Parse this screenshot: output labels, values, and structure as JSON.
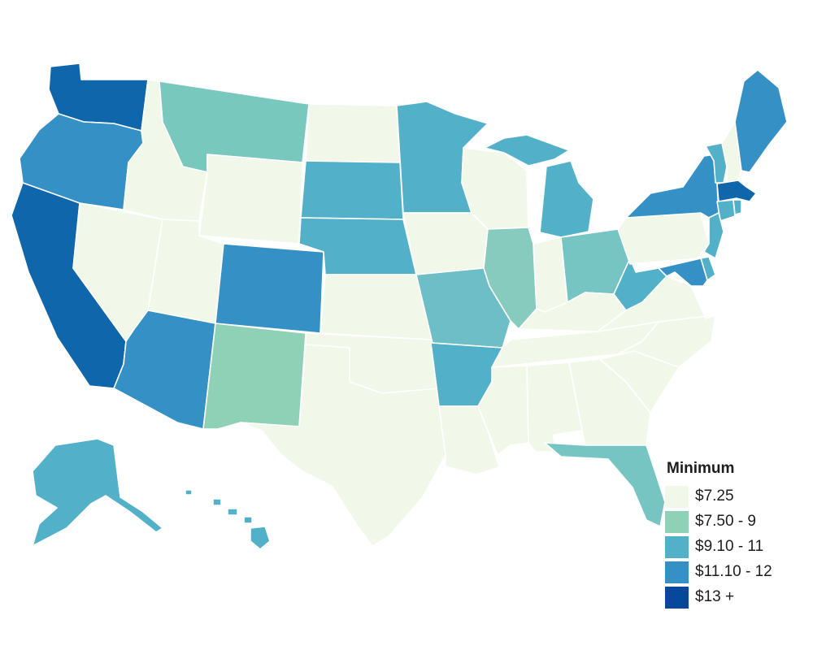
{
  "map": {
    "title": "",
    "colors": {
      "t725": "#f1f8e9",
      "t750_9": "#8fd1b6",
      "t910_11": "#52b1c8",
      "t1110_12": "#3590c5",
      "t13": "#0f66ab",
      "t13_legend": "#08489c",
      "tMO": "#6dbec7",
      "tIL": "#86cbbe",
      "tOH": "#76c5c3",
      "tMT": "#78c8be",
      "border": "#ffffff"
    },
    "states": [
      {
        "name": "WA",
        "tier": "t13"
      },
      {
        "name": "OR",
        "tier": "t1110_12"
      },
      {
        "name": "CA",
        "tier": "t13"
      },
      {
        "name": "NV",
        "tier": "t725"
      },
      {
        "name": "ID",
        "tier": "t725"
      },
      {
        "name": "MT",
        "tier": "tMT"
      },
      {
        "name": "WY",
        "tier": "t725"
      },
      {
        "name": "UT",
        "tier": "t725"
      },
      {
        "name": "AZ",
        "tier": "t1110_12"
      },
      {
        "name": "CO",
        "tier": "t1110_12"
      },
      {
        "name": "NM",
        "tier": "t750_9"
      },
      {
        "name": "ND",
        "tier": "t725"
      },
      {
        "name": "SD",
        "tier": "t910_11"
      },
      {
        "name": "NE",
        "tier": "t910_11"
      },
      {
        "name": "KS",
        "tier": "t725"
      },
      {
        "name": "OK",
        "tier": "t725"
      },
      {
        "name": "TX",
        "tier": "t725"
      },
      {
        "name": "MN",
        "tier": "t910_11"
      },
      {
        "name": "IA",
        "tier": "t725"
      },
      {
        "name": "MO",
        "tier": "tMO"
      },
      {
        "name": "AR",
        "tier": "t910_11"
      },
      {
        "name": "LA",
        "tier": "t725"
      },
      {
        "name": "WI",
        "tier": "t725"
      },
      {
        "name": "IL",
        "tier": "tIL"
      },
      {
        "name": "MI",
        "tier": "t910_11"
      },
      {
        "name": "IN",
        "tier": "t725"
      },
      {
        "name": "OH",
        "tier": "tOH"
      },
      {
        "name": "KY",
        "tier": "t725"
      },
      {
        "name": "TN",
        "tier": "t725"
      },
      {
        "name": "MS",
        "tier": "t725"
      },
      {
        "name": "AL",
        "tier": "t725"
      },
      {
        "name": "GA",
        "tier": "t725"
      },
      {
        "name": "FL",
        "tier": "tOH"
      },
      {
        "name": "SC",
        "tier": "t725"
      },
      {
        "name": "NC",
        "tier": "t725"
      },
      {
        "name": "VA",
        "tier": "t725"
      },
      {
        "name": "WV",
        "tier": "t910_11"
      },
      {
        "name": "PA",
        "tier": "t725"
      },
      {
        "name": "NY",
        "tier": "t1110_12"
      },
      {
        "name": "VT",
        "tier": "t910_11"
      },
      {
        "name": "NH",
        "tier": "t725"
      },
      {
        "name": "ME",
        "tier": "t1110_12"
      },
      {
        "name": "MA",
        "tier": "t13"
      },
      {
        "name": "CT",
        "tier": "t910_11"
      },
      {
        "name": "RI",
        "tier": "t910_11"
      },
      {
        "name": "NJ",
        "tier": "t910_11"
      },
      {
        "name": "DE",
        "tier": "t910_11"
      },
      {
        "name": "MD",
        "tier": "t1110_12"
      },
      {
        "name": "AK",
        "tier": "t910_11"
      },
      {
        "name": "HI",
        "tier": "t910_11"
      }
    ]
  },
  "legend": {
    "title": "Minimum",
    "items": [
      {
        "label": "$7.25",
        "color": "#f1f8e9"
      },
      {
        "label": "$7.50 - 9",
        "color": "#8fd1b6"
      },
      {
        "label": "$9.10 - 11",
        "color": "#52b1c8"
      },
      {
        "label": "$11.10 - 12",
        "color": "#3590c5"
      },
      {
        "label": "$13 +",
        "color": "#08489c"
      }
    ]
  }
}
